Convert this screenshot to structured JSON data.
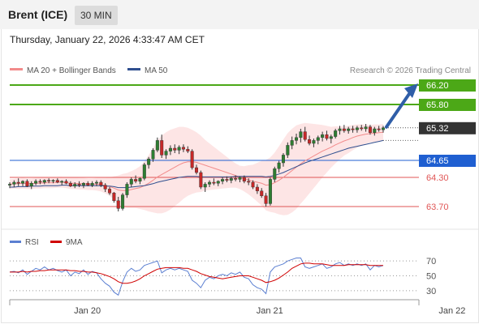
{
  "header": {
    "title": "Brent (ICE)",
    "interval": "30 MIN"
  },
  "timestamp": "Thursday, January 22, 2026 4:33:47 AM CET",
  "legend": [
    {
      "label": "MA 20 + Bollinger Bands",
      "color": "#f28b8b"
    },
    {
      "label": "MA 50",
      "color": "#2f4f8f"
    }
  ],
  "watermark": "Research © 2026 Trading Central",
  "rsi_legend": [
    {
      "label": "RSI",
      "color": "#5b7fd1"
    },
    {
      "label": "9MA",
      "color": "#d00000"
    }
  ],
  "chart_data": {
    "type": "candlestick",
    "ylim": [
      63.45,
      66.35
    ],
    "price_levels": [
      {
        "value": 66.2,
        "label": "66.20",
        "role": "resistance",
        "color": "#4ca817"
      },
      {
        "value": 65.8,
        "label": "65.80",
        "role": "resistance",
        "color": "#4ca817"
      },
      {
        "value": 65.32,
        "label": "65.32",
        "role": "last",
        "color": "#333333"
      },
      {
        "value": 64.65,
        "label": "64.65",
        "role": "pivot",
        "color": "#1f5fd1"
      },
      {
        "value": 64.3,
        "label": "64.30",
        "role": "support",
        "color": "#e05555"
      },
      {
        "value": 63.7,
        "label": "63.70",
        "role": "support",
        "color": "#e05555"
      }
    ],
    "x_ticks": [
      "Jan 20",
      "Jan 21",
      "Jan 22"
    ],
    "x_tick_index": [
      16,
      58,
      100
    ],
    "candles_ohlc": [
      [
        64.14,
        64.2,
        64.08,
        64.16
      ],
      [
        64.16,
        64.24,
        64.1,
        64.2
      ],
      [
        64.2,
        64.28,
        64.12,
        64.18
      ],
      [
        64.18,
        64.24,
        64.12,
        64.22
      ],
      [
        64.22,
        64.26,
        64.1,
        64.12
      ],
      [
        64.12,
        64.22,
        64.06,
        64.18
      ],
      [
        64.18,
        64.26,
        64.14,
        64.22
      ],
      [
        64.22,
        64.26,
        64.16,
        64.2
      ],
      [
        64.2,
        64.26,
        64.16,
        64.24
      ],
      [
        64.24,
        64.28,
        64.18,
        64.22
      ],
      [
        64.22,
        64.26,
        64.18,
        64.24
      ],
      [
        64.24,
        64.28,
        64.18,
        64.2
      ],
      [
        64.2,
        64.24,
        64.14,
        64.22
      ],
      [
        64.22,
        64.26,
        64.16,
        64.18
      ],
      [
        64.18,
        64.22,
        64.1,
        64.12
      ],
      [
        64.12,
        64.2,
        64.08,
        64.16
      ],
      [
        64.16,
        64.22,
        64.1,
        64.14
      ],
      [
        64.14,
        64.2,
        64.08,
        64.18
      ],
      [
        64.18,
        64.22,
        64.12,
        64.14
      ],
      [
        64.14,
        64.22,
        64.1,
        64.18
      ],
      [
        64.18,
        64.24,
        64.12,
        64.2
      ],
      [
        64.2,
        64.24,
        64.1,
        64.14
      ],
      [
        64.14,
        64.18,
        64.0,
        64.06
      ],
      [
        64.06,
        64.1,
        63.94,
        63.98
      ],
      [
        63.98,
        64.0,
        63.78,
        63.82
      ],
      [
        63.82,
        63.9,
        63.6,
        63.66
      ],
      [
        63.66,
        63.98,
        63.62,
        63.94
      ],
      [
        63.94,
        64.2,
        63.88,
        64.16
      ],
      [
        64.16,
        64.3,
        64.1,
        64.26
      ],
      [
        64.26,
        64.34,
        64.18,
        64.22
      ],
      [
        64.22,
        64.3,
        64.16,
        64.28
      ],
      [
        64.28,
        64.6,
        64.24,
        64.56
      ],
      [
        64.56,
        64.72,
        64.48,
        64.68
      ],
      [
        64.68,
        64.9,
        64.62,
        64.86
      ],
      [
        64.86,
        65.12,
        64.82,
        65.06
      ],
      [
        65.06,
        65.18,
        64.7,
        64.76
      ],
      [
        64.76,
        64.88,
        64.68,
        64.84
      ],
      [
        64.84,
        64.96,
        64.76,
        64.9
      ],
      [
        64.9,
        64.98,
        64.8,
        64.86
      ],
      [
        64.86,
        64.96,
        64.78,
        64.92
      ],
      [
        64.92,
        64.98,
        64.82,
        64.88
      ],
      [
        64.88,
        64.94,
        64.8,
        64.84
      ],
      [
        64.84,
        64.88,
        64.46,
        64.5
      ],
      [
        64.5,
        64.56,
        64.36,
        64.4
      ],
      [
        64.4,
        64.44,
        64.06,
        64.1
      ],
      [
        64.1,
        64.2,
        64.0,
        64.16
      ],
      [
        64.16,
        64.24,
        64.1,
        64.2
      ],
      [
        64.2,
        64.28,
        64.14,
        64.18
      ],
      [
        64.18,
        64.24,
        64.12,
        64.22
      ],
      [
        64.22,
        64.3,
        64.16,
        64.26
      ],
      [
        64.26,
        64.32,
        64.2,
        64.24
      ],
      [
        64.24,
        64.32,
        64.18,
        64.28
      ],
      [
        64.28,
        64.34,
        64.22,
        64.26
      ],
      [
        64.26,
        64.32,
        64.2,
        64.3
      ],
      [
        64.3,
        64.34,
        64.18,
        64.22
      ],
      [
        64.22,
        64.28,
        64.14,
        64.2
      ],
      [
        64.2,
        64.24,
        64.06,
        64.1
      ],
      [
        64.1,
        64.16,
        63.96,
        64.02
      ],
      [
        64.02,
        64.08,
        63.88,
        63.92
      ],
      [
        63.92,
        63.98,
        63.7,
        63.76
      ],
      [
        63.76,
        64.3,
        63.72,
        64.26
      ],
      [
        64.26,
        64.52,
        64.2,
        64.48
      ],
      [
        64.48,
        64.64,
        64.4,
        64.6
      ],
      [
        64.6,
        64.8,
        64.52,
        64.76
      ],
      [
        64.76,
        65.02,
        64.7,
        64.96
      ],
      [
        64.96,
        65.14,
        64.88,
        65.06
      ],
      [
        65.06,
        65.2,
        64.98,
        65.12
      ],
      [
        65.12,
        65.3,
        65.02,
        65.24
      ],
      [
        65.24,
        65.34,
        65.04,
        65.08
      ],
      [
        65.08,
        65.16,
        64.96,
        65.0
      ],
      [
        65.0,
        65.1,
        64.92,
        65.06
      ],
      [
        65.06,
        65.16,
        64.98,
        65.12
      ],
      [
        65.12,
        65.24,
        65.04,
        65.18
      ],
      [
        65.18,
        65.26,
        65.06,
        65.1
      ],
      [
        65.1,
        65.18,
        65.0,
        65.14
      ],
      [
        65.14,
        65.3,
        65.1,
        65.26
      ],
      [
        65.26,
        65.36,
        65.18,
        65.3
      ],
      [
        65.3,
        65.38,
        65.22,
        65.26
      ],
      [
        65.26,
        65.34,
        65.2,
        65.3
      ],
      [
        65.3,
        65.36,
        65.22,
        65.28
      ],
      [
        65.28,
        65.36,
        65.22,
        65.32
      ],
      [
        65.32,
        65.38,
        65.26,
        65.3
      ],
      [
        65.3,
        65.4,
        65.24,
        65.34
      ],
      [
        65.34,
        65.38,
        65.18,
        65.22
      ],
      [
        65.22,
        65.34,
        65.16,
        65.3
      ],
      [
        65.3,
        65.36,
        65.24,
        65.28
      ],
      [
        65.28,
        65.36,
        65.22,
        65.32
      ]
    ],
    "ma20": [
      64.16,
      64.17,
      64.17,
      64.18,
      64.17,
      64.17,
      64.18,
      64.18,
      64.19,
      64.19,
      64.19,
      64.2,
      64.2,
      64.19,
      64.18,
      64.18,
      64.17,
      64.17,
      64.16,
      64.16,
      64.16,
      64.15,
      64.13,
      64.11,
      64.08,
      64.04,
      64.03,
      64.03,
      64.05,
      64.07,
      64.09,
      64.13,
      64.18,
      64.24,
      64.31,
      64.36,
      64.41,
      64.46,
      64.51,
      64.56,
      64.6,
      64.62,
      64.62,
      64.61,
      64.58,
      64.55,
      64.52,
      64.49,
      64.46,
      64.43,
      64.4,
      64.37,
      64.34,
      64.3,
      64.27,
      64.25,
      64.22,
      64.2,
      64.18,
      64.14,
      64.15,
      64.19,
      64.24,
      64.3,
      64.37,
      64.44,
      64.51,
      64.58,
      64.64,
      64.69,
      64.74,
      64.79,
      64.84,
      64.88,
      64.92,
      64.97,
      65.01,
      65.05,
      65.08,
      65.12,
      65.15,
      65.17,
      65.19,
      65.2,
      65.21,
      65.22,
      65.23
    ],
    "ma50": [
      64.1,
      64.1,
      64.11,
      64.11,
      64.11,
      64.12,
      64.12,
      64.12,
      64.13,
      64.13,
      64.13,
      64.13,
      64.14,
      64.14,
      64.13,
      64.13,
      64.13,
      64.13,
      64.13,
      64.13,
      64.13,
      64.13,
      64.12,
      64.12,
      64.11,
      64.09,
      64.09,
      64.09,
      64.1,
      64.11,
      64.12,
      64.13,
      64.15,
      64.17,
      64.2,
      64.22,
      64.24,
      64.26,
      64.28,
      64.3,
      64.31,
      64.32,
      64.32,
      64.32,
      64.31,
      64.31,
      64.31,
      64.31,
      64.31,
      64.31,
      64.31,
      64.31,
      64.32,
      64.32,
      64.32,
      64.32,
      64.32,
      64.32,
      64.32,
      64.31,
      64.32,
      64.34,
      64.37,
      64.4,
      64.44,
      64.48,
      64.52,
      64.56,
      64.6,
      64.63,
      64.66,
      64.69,
      64.72,
      64.75,
      64.78,
      64.81,
      64.84,
      64.87,
      64.9,
      64.92,
      64.94,
      64.96,
      64.98,
      65.0,
      65.02,
      65.04,
      65.06
    ],
    "bb_width": [
      0.1,
      0.1,
      0.11,
      0.11,
      0.11,
      0.11,
      0.11,
      0.11,
      0.11,
      0.11,
      0.11,
      0.11,
      0.11,
      0.11,
      0.12,
      0.12,
      0.12,
      0.12,
      0.12,
      0.12,
      0.13,
      0.14,
      0.16,
      0.19,
      0.24,
      0.3,
      0.34,
      0.36,
      0.38,
      0.4,
      0.44,
      0.5,
      0.58,
      0.66,
      0.75,
      0.8,
      0.82,
      0.82,
      0.8,
      0.78,
      0.74,
      0.7,
      0.66,
      0.62,
      0.58,
      0.52,
      0.48,
      0.44,
      0.4,
      0.36,
      0.32,
      0.28,
      0.25,
      0.24,
      0.26,
      0.3,
      0.34,
      0.4,
      0.46,
      0.52,
      0.56,
      0.62,
      0.7,
      0.78,
      0.84,
      0.86,
      0.86,
      0.82,
      0.78,
      0.72,
      0.66,
      0.6,
      0.54,
      0.48,
      0.42,
      0.38,
      0.34,
      0.3,
      0.28,
      0.26,
      0.24,
      0.22,
      0.2,
      0.18,
      0.18,
      0.17,
      0.17
    ],
    "rsi": {
      "ylim": [
        20,
        80
      ],
      "ticks": [
        "70",
        "50",
        "30"
      ],
      "rsi": [
        55,
        56,
        54,
        58,
        52,
        56,
        60,
        58,
        62,
        58,
        60,
        57,
        55,
        58,
        50,
        55,
        53,
        58,
        52,
        56,
        54,
        46,
        40,
        36,
        28,
        24,
        42,
        55,
        60,
        56,
        58,
        64,
        66,
        68,
        70,
        54,
        58,
        60,
        58,
        60,
        58,
        56,
        44,
        40,
        34,
        44,
        48,
        46,
        50,
        52,
        50,
        54,
        52,
        55,
        48,
        46,
        38,
        34,
        32,
        26,
        55,
        62,
        64,
        66,
        70,
        72,
        74,
        74,
        62,
        60,
        62,
        64,
        66,
        60,
        62,
        66,
        68,
        64,
        66,
        64,
        66,
        64,
        66,
        58,
        64,
        62,
        64
      ],
      "ma9": [
        55,
        55,
        55,
        56,
        55,
        56,
        56,
        57,
        57,
        58,
        58,
        58,
        58,
        58,
        57,
        57,
        56,
        56,
        55,
        55,
        54,
        53,
        51,
        49,
        46,
        42,
        40,
        40,
        41,
        43,
        46,
        50,
        53,
        56,
        59,
        60,
        61,
        61,
        61,
        61,
        60,
        60,
        58,
        56,
        53,
        51,
        49,
        48,
        47,
        46,
        47,
        48,
        49,
        50,
        50,
        50,
        48,
        46,
        44,
        41,
        42,
        44,
        47,
        51,
        55,
        60,
        63,
        66,
        67,
        67,
        66,
        66,
        66,
        65,
        64,
        64,
        64,
        64,
        65,
        65,
        65,
        65,
        65,
        64,
        64,
        64,
        64
      ]
    }
  }
}
